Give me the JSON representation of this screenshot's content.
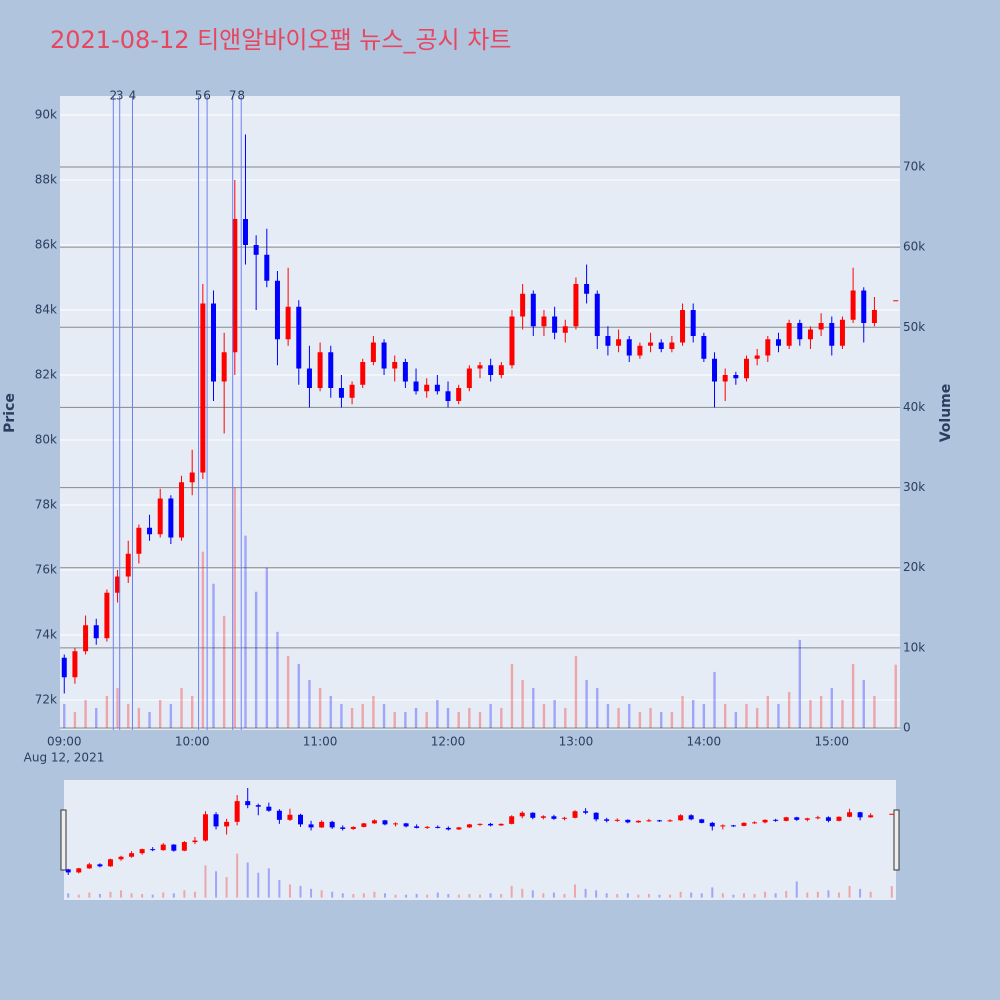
{
  "chart_data": {
    "type": "candlestick",
    "title": "2021-08-12 티앤알바이오팹 뉴스_공시 차트",
    "y_label": "Price",
    "y2_label": "Volume",
    "x_date_label": "Aug 12, 2021",
    "increasing_color": "#ff0000",
    "decreasing_color": "#0000ff",
    "news_color": "#6f7ff5",
    "x": [
      "09:00",
      "09:05",
      "09:10",
      "09:15",
      "09:20",
      "09:25",
      "09:30",
      "09:35",
      "09:40",
      "09:45",
      "09:50",
      "09:55",
      "10:00",
      "10:05",
      "10:10",
      "10:15",
      "10:20",
      "10:25",
      "10:30",
      "10:35",
      "10:40",
      "10:45",
      "10:50",
      "10:55",
      "11:00",
      "11:05",
      "11:10",
      "11:15",
      "11:20",
      "11:25",
      "11:30",
      "11:35",
      "11:40",
      "11:45",
      "11:50",
      "11:55",
      "12:00",
      "12:05",
      "12:10",
      "12:15",
      "12:20",
      "12:25",
      "12:30",
      "12:35",
      "12:40",
      "12:45",
      "12:50",
      "12:55",
      "13:00",
      "13:05",
      "13:10",
      "13:15",
      "13:20",
      "13:25",
      "13:30",
      "13:35",
      "13:40",
      "13:45",
      "13:50",
      "13:55",
      "14:00",
      "14:05",
      "14:10",
      "14:15",
      "14:20",
      "14:25",
      "14:30",
      "14:35",
      "14:40",
      "14:45",
      "14:50",
      "14:55",
      "15:00",
      "15:05",
      "15:10",
      "15:15",
      "15:20",
      "15:30"
    ],
    "open": [
      73300,
      72700,
      73500,
      74300,
      73900,
      75300,
      75800,
      76500,
      77300,
      77100,
      78200,
      77000,
      78700,
      79000,
      84200,
      81800,
      82700,
      86800,
      86000,
      85700,
      84900,
      83100,
      84100,
      82200,
      81600,
      82700,
      81600,
      81300,
      81700,
      82400,
      83000,
      82200,
      82400,
      81800,
      81500,
      81700,
      81500,
      81200,
      81600,
      82200,
      82300,
      82000,
      82300,
      83800,
      84500,
      83500,
      83800,
      83300,
      83500,
      84800,
      84500,
      83200,
      82900,
      83100,
      82600,
      82900,
      83000,
      82800,
      83000,
      84000,
      83200,
      82500,
      81800,
      82000,
      81900,
      82500,
      82600,
      83100,
      82900,
      83600,
      83100,
      83400,
      83600,
      82900,
      83700,
      84600,
      83600,
      84300
    ],
    "high": [
      73400,
      73600,
      74600,
      74500,
      75400,
      76000,
      76900,
      77400,
      77700,
      78500,
      78300,
      78900,
      79700,
      84800,
      84600,
      83300,
      88000,
      89400,
      86300,
      86500,
      85200,
      85300,
      84300,
      82900,
      83000,
      82900,
      82000,
      81800,
      82500,
      83200,
      83100,
      82600,
      82500,
      82200,
      81900,
      82000,
      81800,
      81700,
      82300,
      82400,
      82500,
      82400,
      84000,
      84800,
      84600,
      84000,
      84100,
      83700,
      85000,
      85400,
      84600,
      83500,
      83400,
      83200,
      83000,
      83300,
      83100,
      83200,
      84200,
      84200,
      83300,
      82700,
      82200,
      82100,
      82600,
      82800,
      83200,
      83300,
      83700,
      83700,
      83500,
      83900,
      83800,
      83800,
      85300,
      84700,
      84400,
      84300
    ],
    "low": [
      72200,
      72500,
      73400,
      73700,
      73800,
      75000,
      75600,
      76200,
      76900,
      77000,
      76800,
      76900,
      78300,
      78800,
      81200,
      80200,
      82000,
      85400,
      84000,
      84700,
      82300,
      82900,
      81700,
      81000,
      81500,
      81300,
      81000,
      81100,
      81600,
      82300,
      82000,
      81800,
      81600,
      81400,
      81300,
      81400,
      81000,
      81100,
      81500,
      81900,
      81800,
      81900,
      82200,
      83400,
      83200,
      83200,
      83100,
      83000,
      83400,
      84200,
      82800,
      82600,
      82700,
      82400,
      82500,
      82700,
      82700,
      82700,
      82900,
      83000,
      82400,
      81000,
      81200,
      81700,
      81800,
      82300,
      82400,
      82700,
      82800,
      82900,
      82800,
      83200,
      82600,
      82800,
      83600,
      83000,
      83500,
      84300
    ],
    "close": [
      72700,
      73500,
      74300,
      73900,
      75300,
      75800,
      76500,
      77300,
      77100,
      78200,
      77000,
      78700,
      79000,
      84200,
      81800,
      82700,
      86800,
      86000,
      85700,
      84900,
      83100,
      84100,
      82200,
      81600,
      82700,
      81600,
      81300,
      81700,
      82400,
      83000,
      82200,
      82400,
      81800,
      81500,
      81700,
      81500,
      81200,
      81600,
      82200,
      82300,
      82000,
      82300,
      83800,
      84500,
      83500,
      83800,
      83300,
      83500,
      84800,
      84500,
      83200,
      82900,
      83100,
      82600,
      82900,
      83000,
      82800,
      83000,
      84000,
      83200,
      82500,
      81800,
      82000,
      81900,
      82500,
      82600,
      83100,
      82900,
      83600,
      83100,
      83400,
      83600,
      82900,
      83700,
      84600,
      83600,
      84000,
      84300
    ],
    "volume": [
      3000,
      2000,
      3500,
      2500,
      4000,
      5000,
      3000,
      2500,
      2000,
      3500,
      3000,
      5000,
      4000,
      22000,
      18000,
      14000,
      30000,
      24000,
      17000,
      20000,
      12000,
      9000,
      8000,
      6000,
      5000,
      4000,
      3000,
      2500,
      3000,
      4000,
      3000,
      2000,
      2000,
      2500,
      2000,
      3500,
      2500,
      2000,
      2500,
      2000,
      3000,
      2500,
      8000,
      6000,
      5000,
      3000,
      3500,
      2500,
      9000,
      6000,
      5000,
      3000,
      2500,
      3000,
      2000,
      2500,
      2000,
      2000,
      4000,
      3500,
      3000,
      7000,
      3000,
      2000,
      3000,
      2500,
      4000,
      3000,
      4500,
      11000,
      3500,
      4000,
      5000,
      3500,
      8000,
      6000,
      4000,
      7900
    ],
    "news": {
      "x": [
        "09:23",
        "09:26",
        "09:32",
        "10:03",
        "10:07",
        "10:19",
        "10:23"
      ],
      "labels": [
        "2",
        "3",
        "4",
        "5",
        "6",
        "7",
        "8"
      ]
    },
    "xlim": [
      "08:58",
      "15:32"
    ],
    "xticks": [
      "09:00",
      "10:00",
      "11:00",
      "12:00",
      "13:00",
      "14:00",
      "15:00"
    ],
    "ylim": [
      71077,
      90585
    ],
    "yticks": [
      {
        "value": 72000,
        "label": "72k"
      },
      {
        "value": 74000,
        "label": "74k"
      },
      {
        "value": 76000,
        "label": "76k"
      },
      {
        "value": 78000,
        "label": "78k"
      },
      {
        "value": 80000,
        "label": "80k"
      },
      {
        "value": 82000,
        "label": "82k"
      },
      {
        "value": 84000,
        "label": "84k"
      },
      {
        "value": 86000,
        "label": "86k"
      },
      {
        "value": 88000,
        "label": "88k"
      },
      {
        "value": 90000,
        "label": "90k"
      }
    ],
    "y2lim": [
      -250,
      78860
    ],
    "y2ticks": [
      0,
      {
        "value": 10000,
        "label": "10k"
      },
      {
        "value": 20000,
        "label": "20k"
      },
      {
        "value": 30000,
        "label": "30k"
      },
      {
        "value": 40000,
        "label": "40k"
      },
      {
        "value": 50000,
        "label": "50k"
      },
      {
        "value": 60000,
        "label": "60k"
      },
      {
        "value": 70000,
        "label": "70k"
      }
    ],
    "grid": true,
    "rangeslider": true
  }
}
